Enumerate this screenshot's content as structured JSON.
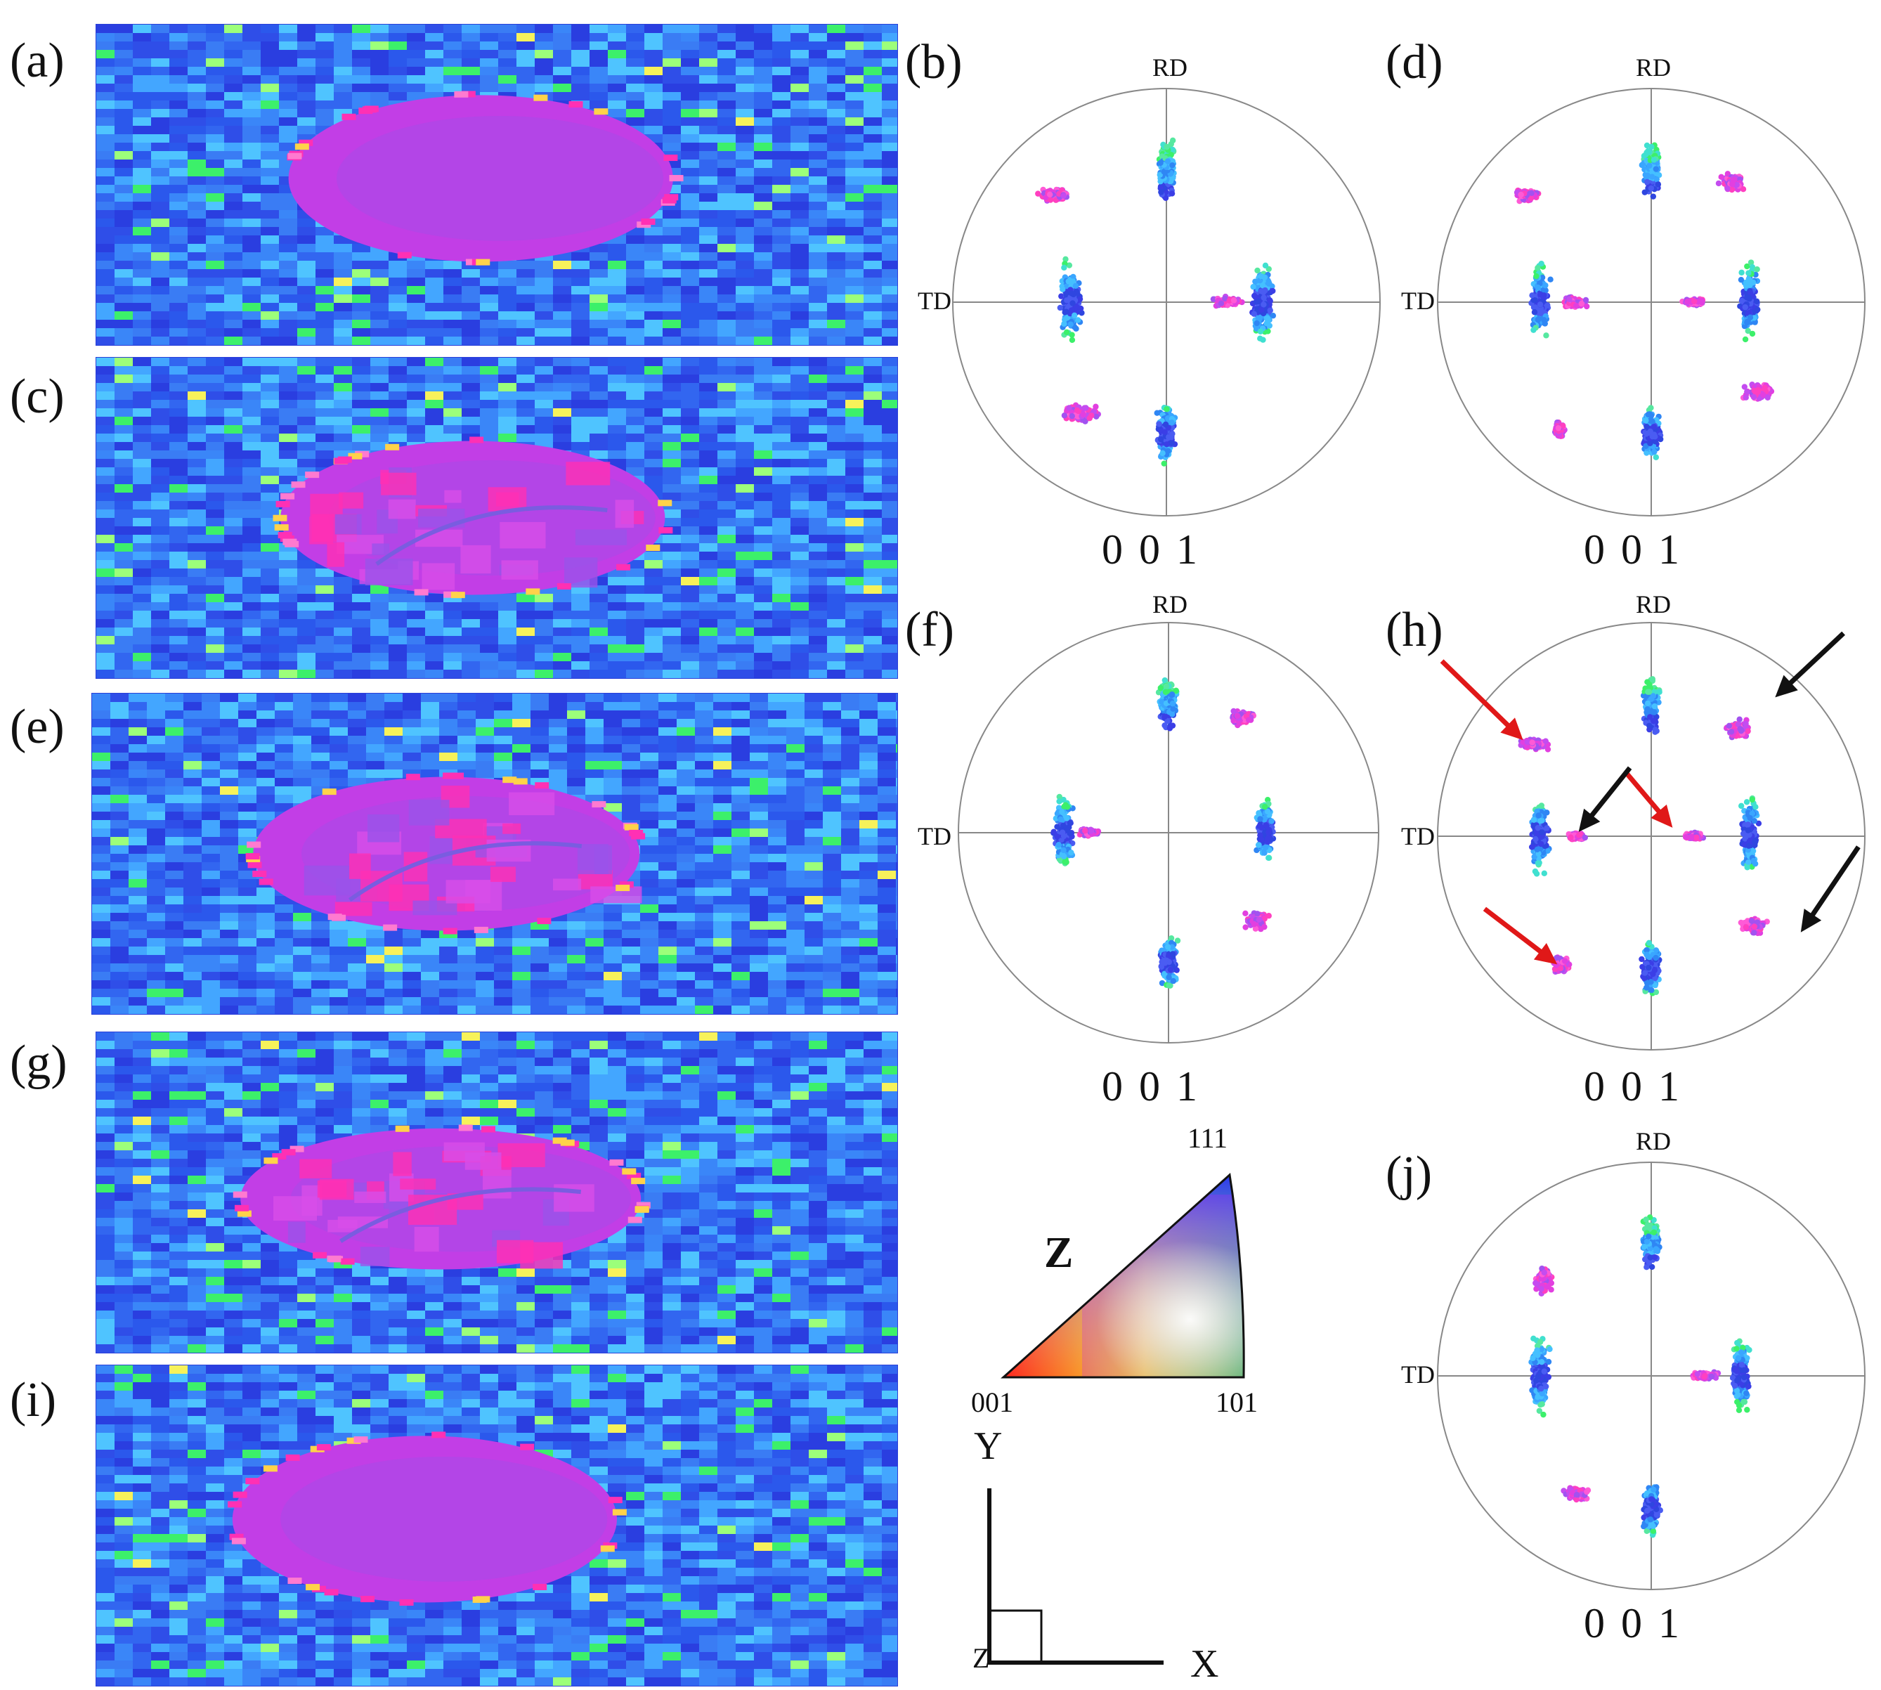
{
  "figure": {
    "panels": [
      {
        "id": "a",
        "label": "(a)",
        "kind": "map"
      },
      {
        "id": "b",
        "label": "(b)",
        "kind": "pole_figure",
        "rd": "RD",
        "td": "TD",
        "pole_index": "0 0 1"
      },
      {
        "id": "c",
        "label": "(c)",
        "kind": "map"
      },
      {
        "id": "d",
        "label": "(d)",
        "kind": "pole_figure",
        "rd": "RD",
        "td": "TD",
        "pole_index": "0 0 1"
      },
      {
        "id": "e",
        "label": "(e)",
        "kind": "map"
      },
      {
        "id": "f",
        "label": "(f)",
        "kind": "pole_figure",
        "rd": "RD",
        "td": "TD",
        "pole_index": "0 0 1"
      },
      {
        "id": "g",
        "label": "(g)",
        "kind": "map"
      },
      {
        "id": "h",
        "label": "(h)",
        "kind": "pole_figure",
        "rd": "RD",
        "td": "TD",
        "pole_index": "0 0 1"
      },
      {
        "id": "i",
        "label": "(i)",
        "kind": "map"
      },
      {
        "id": "j",
        "label": "(j)",
        "kind": "pole_figure",
        "rd": "RD",
        "td": "TD",
        "pole_index": "0 0 1"
      }
    ],
    "ipf_legend": {
      "direction": "Z",
      "corner_111": "111",
      "corner_001": "001",
      "corner_101": "101"
    },
    "axes": {
      "y": "Y",
      "x": "X",
      "z": "Z"
    },
    "colors": {
      "blue": "#2d4be6",
      "cyan": "#39b8ff",
      "green": "#3cf06a",
      "magenta": "#e23fe0",
      "pink": "#ff30b4",
      "purple": "#8a3fe0",
      "red_arrow": "#e01818",
      "black_arrow": "#111111"
    }
  }
}
